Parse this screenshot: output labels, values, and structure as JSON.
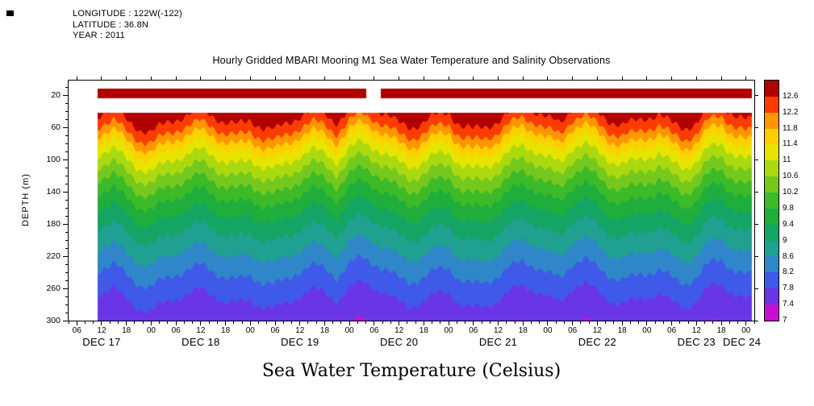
{
  "header": {
    "longitude": "LONGITUDE : 122W(-122)",
    "latitude": "LATITUDE : 36.8N",
    "year": "YEAR : 2011"
  },
  "title": "Hourly Gridded MBARI Mooring M1 Sea Water Temperature and Salinity Observations",
  "caption": "Sea Water Temperature (Celsius)",
  "chart_data": {
    "type": "heatmap",
    "title": "Hourly Gridded MBARI Mooring M1 Sea Water Temperature and Salinity Observations",
    "ylabel": "DEPTH (m)",
    "units": "Celsius",
    "ylim": [
      2,
      300
    ],
    "xlim_hours": [
      4,
      170
    ],
    "x_epoch": "DEC 17 2011 00:00",
    "y_ticks": [
      20,
      60,
      100,
      140,
      180,
      220,
      260,
      300
    ],
    "y_minor_step": 10,
    "x_minor_step_hours": 2,
    "x_ticks": {
      "hours": [
        6,
        12,
        18,
        24,
        30,
        36,
        42,
        48,
        54,
        60,
        66,
        72,
        78,
        84,
        90,
        96,
        102,
        108,
        114,
        120,
        126,
        132,
        138,
        144,
        150,
        156,
        162,
        168
      ],
      "labels": [
        "06",
        "12",
        "18",
        "00",
        "06",
        "12",
        "18",
        "00",
        "06",
        "12",
        "18",
        "00",
        "06",
        "12",
        "18",
        "00",
        "06",
        "12",
        "18",
        "00",
        "06",
        "12",
        "18",
        "00",
        "06",
        "12",
        "18",
        "00"
      ]
    },
    "date_ticks": [
      {
        "hour": 12,
        "label": "DEC 17"
      },
      {
        "hour": 36,
        "label": "DEC 18"
      },
      {
        "hour": 60,
        "label": "DEC 19"
      },
      {
        "hour": 84,
        "label": "DEC 20"
      },
      {
        "hour": 108,
        "label": "DEC 21"
      },
      {
        "hour": 132,
        "label": "DEC 22"
      },
      {
        "hour": 156,
        "label": "DEC 23"
      },
      {
        "hour": 167,
        "label": "DEC 24"
      }
    ],
    "colorbar": {
      "levels": [
        7,
        7.4,
        7.8,
        8.2,
        8.6,
        9,
        9.4,
        9.8,
        10.2,
        10.6,
        11,
        11.4,
        11.8,
        12.2,
        12.6
      ],
      "labels_top_to_bottom": [
        "12.6",
        "12.2",
        "11.8",
        "11.4",
        "11",
        "10.6",
        "10.2",
        "9.8",
        "9.4",
        "9",
        "8.6",
        "8.2",
        "7.8",
        "7.4",
        "7"
      ],
      "colors_low_to_high": [
        "#c511cf",
        "#6a35e6",
        "#3f5ae8",
        "#2f86c8",
        "#1fa090",
        "#14a464",
        "#1fae3c",
        "#3cba28",
        "#74c81e",
        "#abd90f",
        "#e6e400",
        "#ffd000",
        "#ff9600",
        "#fb3c00",
        "#b00000"
      ]
    },
    "field": {
      "start_hour": 11,
      "end_hour": 169.5,
      "top_depth": 42,
      "surface_bar": {
        "depth_top": 12,
        "depth_bottom": 24,
        "color": "#b00000",
        "temp_bin": ">12.6",
        "gap_hours": [
          76,
          79.5
        ]
      },
      "base_profile": {
        "depths": [
          0,
          10,
          20,
          30,
          40,
          50,
          60,
          70,
          80,
          90,
          100,
          110,
          120,
          130,
          140,
          150,
          160,
          170,
          180,
          190,
          200,
          210,
          220,
          230,
          240,
          250,
          260,
          270,
          280,
          290,
          300,
          310,
          320,
          330,
          340
        ],
        "temps": [
          13.2,
          13.1,
          13.0,
          12.9,
          12.75,
          12.55,
          12.25,
          11.9,
          11.5,
          11.2,
          10.9,
          10.65,
          10.4,
          10.15,
          9.9,
          9.7,
          9.5,
          9.3,
          9.12,
          8.96,
          8.8,
          8.65,
          8.5,
          8.35,
          8.2,
          8.05,
          7.92,
          7.8,
          7.72,
          7.63,
          7.55,
          7.45,
          7.35,
          7.25,
          7.15
        ]
      },
      "isotherm_offsets": {
        "start_hour": 0,
        "hour_step": 3,
        "values": [
          0,
          2,
          4,
          6,
          -6,
          -10,
          4,
          14,
          18,
          10,
          2,
          -4,
          -8,
          -2,
          6,
          10,
          4,
          12,
          16,
          8,
          -2,
          -8,
          -4,
          6,
          -10,
          -18,
          -12,
          -2,
          8,
          12,
          6,
          -2,
          -6,
          10,
          16,
          12,
          4,
          -6,
          -14,
          -8,
          2,
          8,
          -12,
          -16,
          -6,
          4,
          10,
          6,
          0,
          -4,
          8,
          14,
          6,
          -10,
          -16,
          -4,
          4
        ]
      },
      "ripples": [
        {
          "amplitude_m": 2.5,
          "period_hours": 2.2
        },
        {
          "amplitude_m": 4.0,
          "period_hours": 9.5
        }
      ]
    }
  }
}
